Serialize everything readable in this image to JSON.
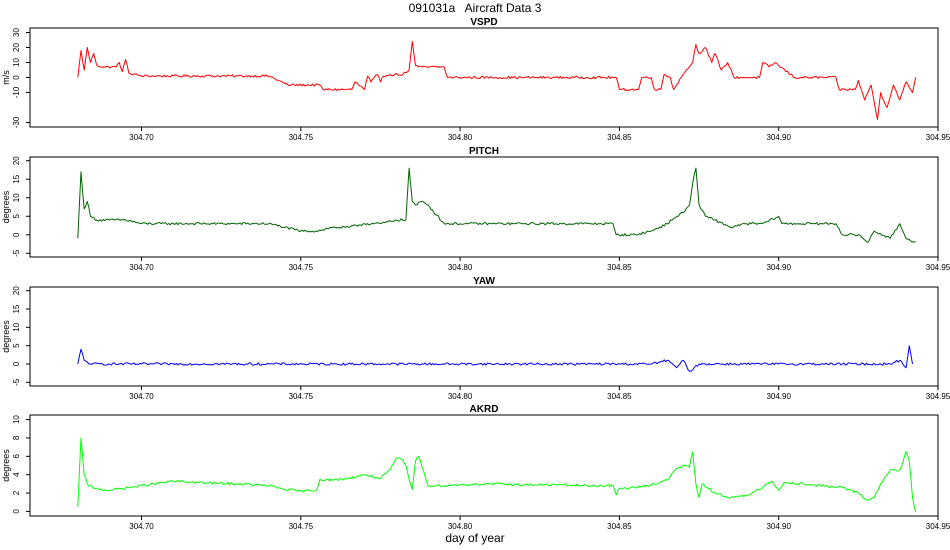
{
  "figure": {
    "title": "091031a   Aircraft Data 3",
    "xlabel": "day of year"
  },
  "chart_data": [
    {
      "type": "line",
      "title": "VSPD",
      "ylabel": "m/s",
      "color": "#ff0000",
      "xlim": [
        304.665,
        304.95
      ],
      "ylim": [
        -33,
        33
      ],
      "xticks": [
        "304.70",
        "304.75",
        "304.80",
        "304.85",
        "304.90",
        "304.95"
      ],
      "yticks": [
        "30",
        "20",
        "10",
        "0",
        "-10",
        "-30"
      ],
      "series": [
        {
          "x": [
            304.68,
            304.681,
            304.682,
            304.683,
            304.684,
            304.685,
            304.686,
            304.688,
            304.692,
            304.693,
            304.694,
            304.695,
            304.696,
            304.7,
            304.71,
            304.72,
            304.73,
            304.74,
            304.746,
            304.747,
            304.756,
            304.757,
            304.766,
            304.767,
            304.77,
            304.771,
            304.772,
            304.774,
            304.775,
            304.776,
            304.778,
            304.782,
            304.784,
            304.785,
            304.786,
            304.787,
            304.788,
            304.79,
            304.795,
            304.796,
            304.8,
            304.81,
            304.82,
            304.83,
            304.84,
            304.849,
            304.85,
            304.856,
            304.857,
            304.86,
            304.861,
            304.863,
            304.864,
            304.866,
            304.867,
            304.87,
            304.871,
            304.873,
            304.874,
            304.875,
            304.877,
            304.879,
            304.88,
            304.882,
            304.884,
            304.886,
            304.888,
            304.89,
            304.894,
            304.895,
            304.897,
            304.899,
            304.9,
            304.905,
            304.91,
            304.918,
            304.919,
            304.924,
            304.925,
            304.927,
            304.929,
            304.931,
            304.932,
            304.934,
            304.936,
            304.938,
            304.94,
            304.942,
            304.943
          ],
          "y": [
            0,
            18,
            5,
            20,
            10,
            16,
            8,
            7,
            7,
            10,
            4,
            12,
            3,
            1,
            1,
            1,
            1,
            1,
            -5,
            -5,
            -5,
            -8,
            -8,
            -3,
            -8,
            1,
            -3,
            2,
            -3,
            1,
            2,
            2,
            5,
            24,
            8,
            7,
            7,
            7,
            7,
            0,
            0,
            0,
            0,
            0,
            0,
            0,
            -8,
            -8,
            0,
            0,
            -8,
            -8,
            2,
            0,
            -8,
            2,
            5,
            10,
            22,
            16,
            20,
            10,
            16,
            5,
            10,
            0,
            0,
            0,
            0,
            10,
            7,
            10,
            8,
            0,
            0,
            0,
            -8,
            -8,
            -2,
            -15,
            -5,
            -28,
            -10,
            -20,
            -5,
            -15,
            -3,
            -10,
            0
          ]
        }
      ]
    },
    {
      "type": "line",
      "title": "PITCH",
      "ylabel": "degrees",
      "color": "#006400",
      "xlim": [
        304.665,
        304.95
      ],
      "ylim": [
        -6,
        21
      ],
      "xticks": [
        "304.70",
        "304.75",
        "304.80",
        "304.85",
        "304.90",
        "304.95"
      ],
      "yticks": [
        "20",
        "15",
        "10",
        "5",
        "0",
        "-5"
      ],
      "series": [
        {
          "x": [
            304.68,
            304.681,
            304.682,
            304.683,
            304.684,
            304.686,
            304.69,
            304.695,
            304.7,
            304.71,
            304.72,
            304.73,
            304.74,
            304.745,
            304.75,
            304.755,
            304.76,
            304.765,
            304.77,
            304.775,
            304.78,
            304.783,
            304.784,
            304.785,
            304.786,
            304.788,
            304.79,
            304.795,
            304.8,
            304.81,
            304.82,
            304.83,
            304.84,
            304.848,
            304.849,
            304.855,
            304.86,
            304.865,
            304.868,
            304.87,
            304.872,
            304.873,
            304.874,
            304.875,
            304.877,
            304.88,
            304.885,
            304.89,
            304.895,
            304.9,
            304.901,
            304.91,
            304.918,
            304.92,
            304.925,
            304.928,
            304.93,
            304.935,
            304.938,
            304.94,
            304.943
          ],
          "y": [
            -1,
            17,
            7,
            9,
            5,
            4,
            4,
            4,
            3,
            3,
            3,
            3,
            3,
            2,
            1,
            1,
            2,
            2,
            3,
            3,
            4,
            4,
            18,
            9,
            8,
            9,
            8,
            3,
            3,
            3,
            3,
            3,
            3,
            3,
            0,
            0,
            1,
            3,
            5,
            6,
            8,
            14,
            18,
            8,
            5,
            4,
            2,
            3,
            3,
            5,
            3,
            3,
            3,
            0,
            0,
            -2,
            1,
            -1,
            3,
            -1,
            -2
          ]
        }
      ]
    },
    {
      "type": "line",
      "title": "YAW",
      "ylabel": "degrees",
      "color": "#0000ff",
      "xlim": [
        304.665,
        304.95
      ],
      "ylim": [
        -6,
        21
      ],
      "xticks": [
        "304.70",
        "304.75",
        "304.80",
        "304.85",
        "304.90",
        "304.95"
      ],
      "yticks": [
        "20",
        "15",
        "10",
        "5",
        "0",
        "-5"
      ],
      "series": [
        {
          "x": [
            304.68,
            304.681,
            304.682,
            304.684,
            304.69,
            304.7,
            304.72,
            304.74,
            304.76,
            304.78,
            304.8,
            304.82,
            304.84,
            304.86,
            304.865,
            304.868,
            304.87,
            304.872,
            304.875,
            304.88,
            304.9,
            304.92,
            304.935,
            304.938,
            304.94,
            304.941,
            304.942
          ],
          "y": [
            0,
            4,
            1,
            0,
            0,
            0,
            0,
            0,
            0,
            0,
            0,
            0,
            0,
            0,
            1,
            -1,
            1,
            -2,
            0,
            0,
            0,
            0,
            0,
            1,
            -1,
            5,
            0
          ]
        }
      ]
    },
    {
      "type": "line",
      "title": "AKRD",
      "ylabel": "degrees",
      "color": "#00ff00",
      "xlim": [
        304.665,
        304.95
      ],
      "ylim": [
        -0.5,
        10.5
      ],
      "xticks": [
        "304.70",
        "304.75",
        "304.80",
        "304.85",
        "304.90",
        "304.95"
      ],
      "yticks": [
        "10",
        "8",
        "6",
        "4",
        "2",
        "0"
      ],
      "series": [
        {
          "x": [
            304.68,
            304.681,
            304.682,
            304.683,
            304.685,
            304.69,
            304.7,
            304.71,
            304.72,
            304.73,
            304.74,
            304.745,
            304.75,
            304.755,
            304.756,
            304.76,
            304.765,
            304.77,
            304.775,
            304.778,
            304.78,
            304.782,
            304.783,
            304.784,
            304.785,
            304.786,
            304.787,
            304.79,
            304.795,
            304.8,
            304.81,
            304.82,
            304.83,
            304.84,
            304.848,
            304.849,
            304.85,
            304.855,
            304.86,
            304.865,
            304.868,
            304.87,
            304.872,
            304.873,
            304.874,
            304.875,
            304.876,
            304.88,
            304.885,
            304.89,
            304.895,
            304.898,
            304.9,
            304.902,
            304.91,
            304.92,
            304.925,
            304.928,
            304.93,
            304.932,
            304.935,
            304.938,
            304.94,
            304.941,
            304.942,
            304.943
          ],
          "y": [
            0.5,
            8,
            4,
            3,
            2.5,
            2.3,
            2.8,
            3.3,
            3.1,
            3,
            2.8,
            2.4,
            2.2,
            2.3,
            3.5,
            3.4,
            3.6,
            4,
            3.6,
            4.5,
            5.8,
            5.6,
            5,
            3.5,
            2.4,
            5.5,
            6,
            2.8,
            2.8,
            2.9,
            3,
            2.9,
            2.9,
            2.8,
            2.8,
            1.8,
            2.5,
            2.6,
            2.9,
            3.4,
            4.7,
            5,
            4.8,
            6.5,
            3,
            1.5,
            3,
            2,
            1.5,
            1.7,
            2.6,
            3.3,
            2.3,
            3.2,
            2.9,
            2.6,
            2,
            1.2,
            1.5,
            3,
            4.5,
            4.5,
            6.5,
            5.5,
            1.5,
            -0.1
          ]
        }
      ]
    }
  ]
}
